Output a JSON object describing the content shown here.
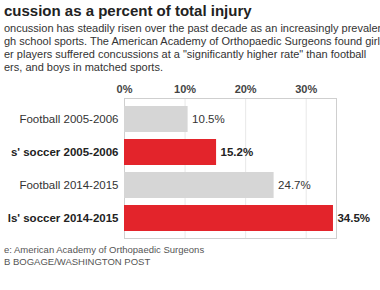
{
  "chart_data": {
    "type": "bar",
    "orientation": "horizontal",
    "title": "cussion as a percent of total injury",
    "subtitle": [
      "oncussion has steadily risen over the past decade as an increasingly prevalent in",
      "gh school sports. The American Academy of Orthopaedic Surgeons found girls",
      "er players suffered concussions at a \"significantly higher rate\" than football",
      "ers, and boys in matched sports."
    ],
    "caption": [
      "e: American Academy of Orthopaedic Surgeons",
      "B BOGAGE/WASHINGTON POST"
    ],
    "categories": [
      "Football 2005-2006",
      "s' soccer 2005-2006",
      "Football 2014-2015",
      "ls' soccer 2014-2015"
    ],
    "values": [
      10.5,
      15.2,
      24.7,
      34.5
    ],
    "value_labels": [
      "10.5%",
      "15.2%",
      "24.7%",
      "34.5%"
    ],
    "colors": [
      "#d6d6d6",
      "#e3242b",
      "#d6d6d6",
      "#e3242b"
    ],
    "xlim": [
      0,
      35
    ],
    "xticks": [
      {
        "value": 0,
        "label": "0%"
      },
      {
        "value": 10,
        "label": "10%"
      },
      {
        "value": 20,
        "label": "20%"
      },
      {
        "value": 30,
        "label": "30%"
      }
    ],
    "grid": true,
    "data_labels": true
  }
}
